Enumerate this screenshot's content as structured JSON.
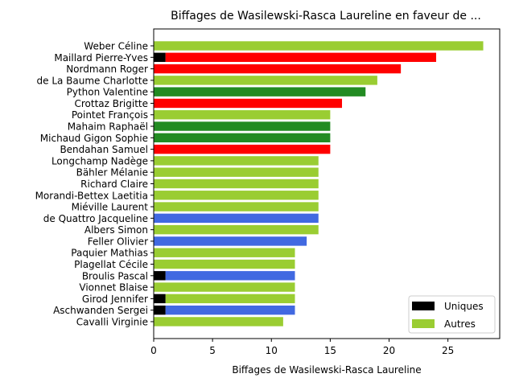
{
  "chart_data": {
    "type": "bar",
    "orientation": "horizontal",
    "stacked": true,
    "title": "Biffages de Wasilewski-Rasca Laureline en faveur de ...",
    "xlabel": "Biffages de Wasilewski-Rasca Laureline",
    "ylabel": "",
    "xlim": [
      0,
      29.4
    ],
    "xticks": [
      0,
      5,
      10,
      15,
      20,
      25
    ],
    "grid": false,
    "legend_position": "lower right",
    "legend": [
      {
        "label": "Uniques",
        "color": "#000000"
      },
      {
        "label": "Autres",
        "color": "#9acd32"
      }
    ],
    "categories": [
      "Weber Céline",
      "Maillard Pierre-Yves",
      "Nordmann Roger",
      "de La Baume Charlotte",
      "Python Valentine",
      "Crottaz Brigitte",
      "Pointet François",
      "Mahaim Raphaël",
      "Michaud Gigon Sophie",
      "Bendahan Samuel",
      "Longchamp Nadège",
      "Bähler Mélanie",
      "Richard Claire",
      "Morandi-Bettex Laetitia",
      "Miéville Laurent",
      "de Quattro Jacqueline",
      "Albers Simon",
      "Feller Olivier",
      "Paquier Mathias",
      "Plagellat Cécile",
      "Broulis Pascal",
      "Vionnet Blaise",
      "Girod Jennifer",
      "Aschwanden Sergei",
      "Cavalli Virginie"
    ],
    "uniques": [
      0,
      1,
      0,
      0,
      0,
      0,
      0,
      0,
      0,
      0,
      0,
      0,
      0,
      0,
      0,
      0,
      0,
      0,
      0,
      0,
      1,
      0,
      1,
      1,
      0
    ],
    "totals": [
      28,
      24,
      21,
      19,
      18,
      16,
      15,
      15,
      15,
      15,
      14,
      14,
      14,
      14,
      14,
      14,
      14,
      13,
      12,
      12,
      12,
      12,
      12,
      12,
      11
    ],
    "bar_colors": [
      "#9acd32",
      "#ff0000",
      "#ff0000",
      "#9acd32",
      "#228b22",
      "#ff0000",
      "#9acd32",
      "#228b22",
      "#228b22",
      "#ff0000",
      "#9acd32",
      "#9acd32",
      "#9acd32",
      "#9acd32",
      "#9acd32",
      "#4169e1",
      "#9acd32",
      "#4169e1",
      "#9acd32",
      "#9acd32",
      "#4169e1",
      "#9acd32",
      "#9acd32",
      "#4169e1",
      "#9acd32"
    ]
  }
}
